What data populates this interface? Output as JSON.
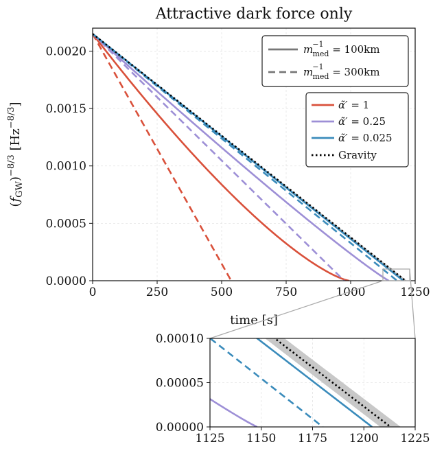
{
  "chart_data": [
    {
      "type": "line",
      "title": "Attractive dark force only",
      "xlabel": "time [s]",
      "ylabel": "(f_GW)^-8/3 [Hz^-8/3]",
      "xlim": [
        0,
        1250
      ],
      "ylim": [
        0,
        0.0022
      ],
      "xticks": [
        "0",
        "250",
        "500",
        "750",
        "1000",
        "1250"
      ],
      "yticks": [
        "0.0000",
        "0.0005",
        "0.0010",
        "0.0015",
        "0.0020"
      ],
      "grid": true,
      "style_legend": {
        "placement": "top-right",
        "entries": [
          {
            "label": "m_med^-1 = 100km",
            "linestyle": "solid"
          },
          {
            "label": "m_med^-1 = 300km",
            "linestyle": "dashed"
          }
        ]
      },
      "color_legend": {
        "placement": "upper-right",
        "entries": [
          {
            "label": "α̃′ = 1",
            "color": "#d9503a"
          },
          {
            "label": "α̃′ = 0.25",
            "color": "#9d8fd6"
          },
          {
            "label": "α̃′ = 0.025",
            "color": "#3a8bbb"
          },
          {
            "label": "Gravity",
            "color": "#000000",
            "linestyle": "dotted"
          }
        ]
      },
      "y0": 0.00215,
      "series": [
        {
          "alpha": "1",
          "range_km": "100",
          "color": "#d9503a",
          "dash": "solid",
          "tc": 995,
          "shape": 1.35
        },
        {
          "alpha": "1",
          "range_km": "300",
          "color": "#d9503a",
          "dash": "dashed",
          "tc": 537,
          "shape": 1.0
        },
        {
          "alpha": "0.25",
          "range_km": "100",
          "color": "#9d8fd6",
          "dash": "solid",
          "tc": 1148,
          "shape": 1.08
        },
        {
          "alpha": "0.25",
          "range_km": "300",
          "color": "#9d8fd6",
          "dash": "dashed",
          "tc": 975,
          "shape": 1.0
        },
        {
          "alpha": "0.025",
          "range_km": "100",
          "color": "#3a8bbb",
          "dash": "solid",
          "tc": 1204,
          "shape": 1.0
        },
        {
          "alpha": "0.025",
          "range_km": "300",
          "color": "#3a8bbb",
          "dash": "dashed",
          "tc": 1180,
          "shape": 1.0
        },
        {
          "alpha": "Gravity",
          "range_km": "",
          "color": "#000000",
          "dash": "dotted",
          "tc": 1213,
          "shape": 1.0
        }
      ],
      "gravity_band": [
        1208,
        1218
      ]
    },
    {
      "type": "line",
      "title": "",
      "xlabel": "",
      "ylabel": "",
      "xlim": [
        1125,
        1225
      ],
      "ylim": [
        0,
        0.0001
      ],
      "xticks": [
        "1125",
        "1150",
        "1175",
        "1200",
        "1225"
      ],
      "yticks": [
        "0.00000",
        "0.00005",
        "0.00010"
      ],
      "grid": true
    }
  ]
}
